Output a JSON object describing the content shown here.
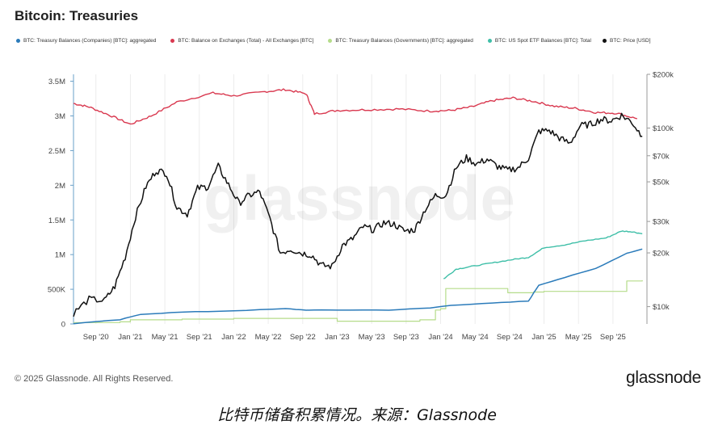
{
  "header": {
    "title": "Bitcoin: Treasuries"
  },
  "legend": [
    {
      "label": "BTC: Treasury Balances (Companies) [BTC]: aggregated",
      "color": "#2b7bba"
    },
    {
      "label": "BTC: Balance on Exchanges (Total) - All Exchanges [BTC]",
      "color": "#d9384f"
    },
    {
      "label": "BTC: Treasury Balances (Governments) [BTC]: aggregated",
      "color": "#b5dc8a"
    },
    {
      "label": "BTC: US Spot ETF Balances [BTC]: Total",
      "color": "#3fbfa8"
    },
    {
      "label": "BTC: Price [USD]",
      "color": "#111111"
    }
  ],
  "watermark": "glassnode",
  "footer": {
    "copyright": "© 2025 Glassnode. All Rights Reserved.",
    "brand": "glassnode"
  },
  "caption": "比特币储备积累情况。来源：Glassnode",
  "chart_data": {
    "type": "line",
    "title": "Bitcoin: Treasuries",
    "x_tick_labels": [
      "Sep '20",
      "Jan '21",
      "May '21",
      "Sep '21",
      "Jan '22",
      "May '22",
      "Sep '22",
      "Jan '23",
      "May '23",
      "Sep '23",
      "Jan '24",
      "May '24",
      "Sep '24",
      "Jan '25",
      "May '25",
      "Sep '25"
    ],
    "x_range": [
      "2020-06",
      "2025-12"
    ],
    "y_left": {
      "ticks": [
        0,
        500000,
        1000000,
        1500000,
        2000000,
        2500000,
        3000000,
        3500000
      ],
      "tick_labels": [
        "0",
        "500K",
        "1M",
        "1.5M",
        "2M",
        "2.5M",
        "3M",
        "3.5M"
      ],
      "range": [
        0,
        3600000
      ],
      "unit": "BTC"
    },
    "y_right": {
      "scale": "log",
      "ticks": [
        10000,
        20000,
        30000,
        50000,
        70000,
        100000,
        200000
      ],
      "tick_labels": [
        "$10k",
        "$20k",
        "$30k",
        "$50k",
        "$70k",
        "$100k",
        "$200k"
      ],
      "range": [
        8000,
        200000
      ],
      "unit": "USD"
    },
    "series": [
      {
        "name": "BTC: Balance on Exchanges (Total) - All Exchanges [BTC]",
        "axis": "left",
        "color": "#d9384f",
        "x": [
          2020.45,
          2020.6,
          2020.8,
          2021.0,
          2021.2,
          2021.45,
          2021.8,
          2022.0,
          2022.3,
          2022.5,
          2022.7,
          2022.78,
          2023.0,
          2023.3,
          2023.6,
          2023.9,
          2024.1,
          2024.3,
          2024.5,
          2024.7,
          2024.9,
          2025.1,
          2025.3,
          2025.5,
          2025.7,
          2025.9
        ],
        "values": [
          3180000,
          3130000,
          3010000,
          2880000,
          3000000,
          3200000,
          3330000,
          3290000,
          3350000,
          3380000,
          3320000,
          3030000,
          3080000,
          3090000,
          3100000,
          3070000,
          3080000,
          3130000,
          3220000,
          3260000,
          3210000,
          3140000,
          3110000,
          3050000,
          3040000,
          2960000
        ]
      },
      {
        "name": "BTC: Treasury Balances (Governments) [BTC]: aggregated",
        "axis": "left",
        "color": "#b5dc8a",
        "x": [
          2020.45,
          2020.9,
          2021.0,
          2021.5,
          2022.0,
          2022.5,
          2023.0,
          2023.8,
          2023.95,
          2024.0,
          2024.05,
          2024.6,
          2024.65,
          2024.9,
          2025.0,
          2025.5,
          2025.8,
          2025.95
        ],
        "values": [
          20000,
          30000,
          60000,
          70000,
          80000,
          80000,
          40000,
          60000,
          200000,
          220000,
          510000,
          510000,
          450000,
          460000,
          470000,
          470000,
          620000,
          630000
        ]
      },
      {
        "name": "BTC: Treasury Balances (Companies) [BTC]: aggregated",
        "axis": "left",
        "color": "#2b7bba",
        "x": [
          2020.45,
          2020.9,
          2021.1,
          2021.5,
          2022.0,
          2022.5,
          2022.7,
          2023.0,
          2023.5,
          2023.9,
          2024.1,
          2024.5,
          2024.85,
          2024.95,
          2025.2,
          2025.5,
          2025.8,
          2025.95
        ],
        "values": [
          5000,
          60000,
          140000,
          170000,
          190000,
          220000,
          200000,
          200000,
          200000,
          230000,
          270000,
          300000,
          330000,
          560000,
          670000,
          800000,
          1020000,
          1080000
        ]
      },
      {
        "name": "BTC: US Spot ETF Balances [BTC]: Total",
        "axis": "left",
        "color": "#3fbfa8",
        "x": [
          2024.03,
          2024.15,
          2024.3,
          2024.5,
          2024.7,
          2024.85,
          2025.0,
          2025.2,
          2025.4,
          2025.6,
          2025.75,
          2025.85,
          2025.95
        ],
        "values": [
          650000,
          790000,
          830000,
          880000,
          930000,
          960000,
          1100000,
          1140000,
          1200000,
          1240000,
          1340000,
          1330000,
          1300000
        ]
      },
      {
        "name": "BTC: Price [USD]",
        "axis": "right",
        "color": "#111111",
        "x": [
          2020.45,
          2020.6,
          2020.75,
          2020.85,
          2020.95,
          2021.05,
          2021.15,
          2021.25,
          2021.35,
          2021.45,
          2021.55,
          2021.65,
          2021.75,
          2021.85,
          2021.95,
          2022.05,
          2022.15,
          2022.25,
          2022.35,
          2022.45,
          2022.55,
          2022.65,
          2022.75,
          2022.85,
          2022.95,
          2023.05,
          2023.15,
          2023.25,
          2023.35,
          2023.45,
          2023.55,
          2023.65,
          2023.75,
          2023.85,
          2023.95,
          2024.05,
          2024.15,
          2024.25,
          2024.35,
          2024.45,
          2024.55,
          2024.65,
          2024.75,
          2024.85,
          2024.95,
          2025.05,
          2025.15,
          2025.25,
          2025.35,
          2025.45,
          2025.55,
          2025.65,
          2025.75,
          2025.85,
          2025.95
        ],
        "values": [
          9200,
          11000,
          10800,
          13000,
          19000,
          32000,
          47000,
          58000,
          56000,
          36000,
          33000,
          46000,
          47000,
          61000,
          48000,
          38000,
          42000,
          44000,
          31000,
          20000,
          21000,
          20000,
          19500,
          17000,
          16800,
          22000,
          24000,
          28000,
          27000,
          29500,
          29000,
          26500,
          27000,
          35000,
          42000,
          42000,
          60000,
          68000,
          63000,
          67000,
          61000,
          58000,
          60000,
          68000,
          96000,
          97000,
          88000,
          82000,
          103000,
          105000,
          112000,
          110000,
          118000,
          108000,
          90000
        ]
      }
    ],
    "grid": "vertical",
    "legend_position": "top"
  }
}
